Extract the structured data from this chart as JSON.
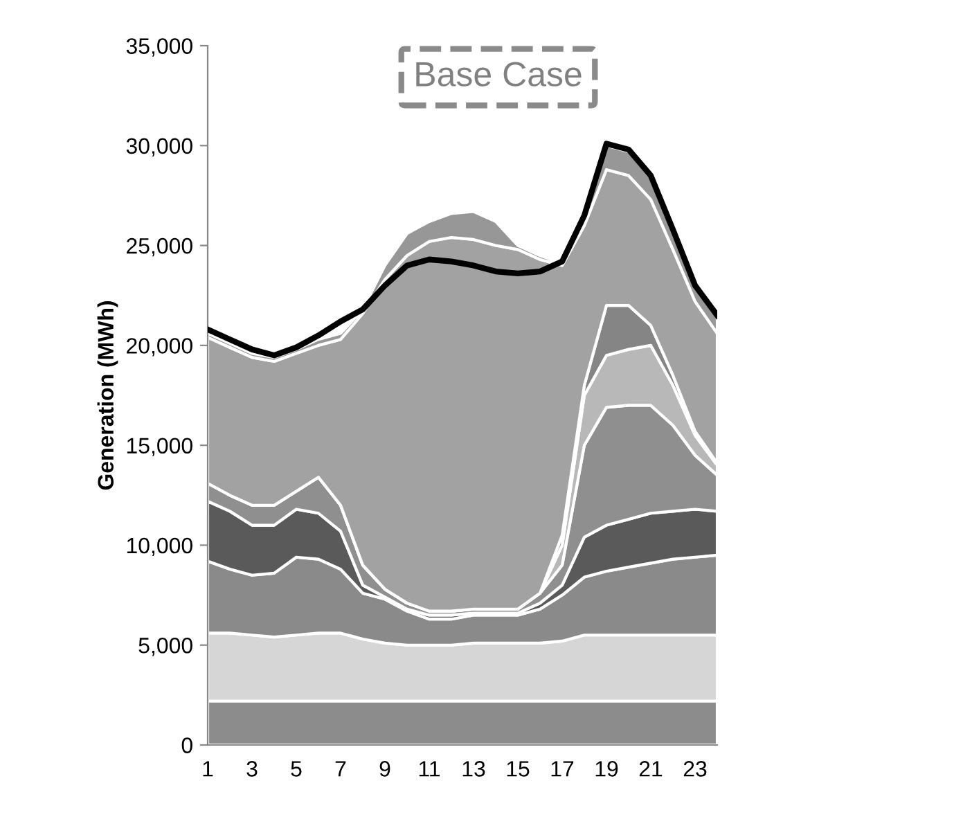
{
  "chart_data": {
    "type": "area",
    "stacked": true,
    "ylabel": "Generation (MWh)",
    "annotations": [
      "Base Case"
    ],
    "x": [
      1,
      2,
      3,
      4,
      5,
      6,
      7,
      8,
      9,
      10,
      11,
      12,
      13,
      14,
      15,
      16,
      17,
      18,
      19,
      20,
      21,
      22,
      23,
      24
    ],
    "xlim": [
      1,
      24
    ],
    "xticks": [
      1,
      3,
      5,
      7,
      9,
      11,
      13,
      15,
      17,
      19,
      21,
      23
    ],
    "ylim": [
      0,
      35000
    ],
    "yticks": [
      {
        "value": 0,
        "label": "0"
      },
      {
        "value": 5000,
        "label": "5,000"
      },
      {
        "value": 10000,
        "label": "10,000"
      },
      {
        "value": 15000,
        "label": "15,000"
      },
      {
        "value": 20000,
        "label": "20,000"
      },
      {
        "value": 25000,
        "label": "25,000"
      },
      {
        "value": 30000,
        "label": "30,000"
      },
      {
        "value": 35000,
        "label": "35,000"
      }
    ],
    "grid": false,
    "legend": false,
    "series": [
      {
        "color": "#8c8c8c",
        "values": [
          2200,
          2200,
          2200,
          2200,
          2200,
          2200,
          2200,
          2200,
          2200,
          2200,
          2200,
          2200,
          2200,
          2200,
          2200,
          2200,
          2200,
          2200,
          2200,
          2200,
          2200,
          2200,
          2200,
          2200
        ]
      },
      {
        "color": "#d6d6d6",
        "values": [
          3400,
          3400,
          3300,
          3200,
          3300,
          3400,
          3400,
          3100,
          2900,
          2800,
          2800,
          2800,
          2900,
          2900,
          2900,
          2900,
          3000,
          3300,
          3300,
          3300,
          3300,
          3300,
          3300,
          3300
        ]
      },
      {
        "color": "#8a8a8a",
        "values": [
          3600,
          3200,
          3000,
          3200,
          3900,
          3700,
          3200,
          2300,
          2200,
          1700,
          1300,
          1300,
          1400,
          1400,
          1400,
          1700,
          2300,
          2900,
          3200,
          3400,
          3600,
          3800,
          3900,
          4000
        ]
      },
      {
        "color": "#5a5a5a",
        "values": [
          3000,
          2900,
          2500,
          2400,
          2400,
          2300,
          1900,
          400,
          100,
          100,
          200,
          200,
          100,
          100,
          100,
          300,
          500,
          2000,
          2300,
          2400,
          2500,
          2400,
          2400,
          2200
        ]
      },
      {
        "color": "#8f8f8f",
        "values": [
          900,
          800,
          1000,
          1000,
          900,
          1800,
          1300,
          1000,
          400,
          300,
          200,
          200,
          200,
          200,
          200,
          500,
          1000,
          4600,
          5900,
          5700,
          5400,
          4300,
          2700,
          1800
        ]
      },
      {
        "color": "#b8b8b8",
        "values": [
          0,
          0,
          0,
          0,
          0,
          0,
          0,
          0,
          0,
          0,
          0,
          0,
          0,
          0,
          0,
          0,
          1000,
          2500,
          2600,
          2800,
          3000,
          2000,
          1000,
          500
        ]
      },
      {
        "color": "#858585",
        "values": [
          0,
          0,
          0,
          0,
          0,
          0,
          0,
          0,
          0,
          0,
          0,
          0,
          0,
          0,
          0,
          0,
          500,
          500,
          2500,
          2200,
          1000,
          500,
          200,
          100
        ]
      },
      {
        "color": "#a2a2a2",
        "values": [
          7300,
          7400,
          7400,
          7200,
          6900,
          6600,
          8300,
          12600,
          15500,
          17400,
          18500,
          18700,
          18500,
          18200,
          18000,
          16700,
          13500,
          8000,
          6800,
          6500,
          6300,
          6300,
          6500,
          6500
        ]
      },
      {
        "color": "#979797",
        "values": [
          200,
          200,
          200,
          200,
          200,
          300,
          300,
          200,
          700,
          1100,
          1000,
          1200,
          1400,
          1200,
          200,
          200,
          100,
          500,
          1200,
          1200,
          1100,
          900,
          700,
          800
        ]
      },
      {
        "type": "line",
        "color": "#000000",
        "values": [
          20800,
          20300,
          19800,
          19500,
          19900,
          20500,
          21200,
          21800,
          23000,
          24000,
          24300,
          24200,
          24000,
          23700,
          23600,
          23700,
          24200,
          26500,
          30100,
          29800,
          28500,
          25800,
          23000,
          21500
        ]
      }
    ]
  }
}
